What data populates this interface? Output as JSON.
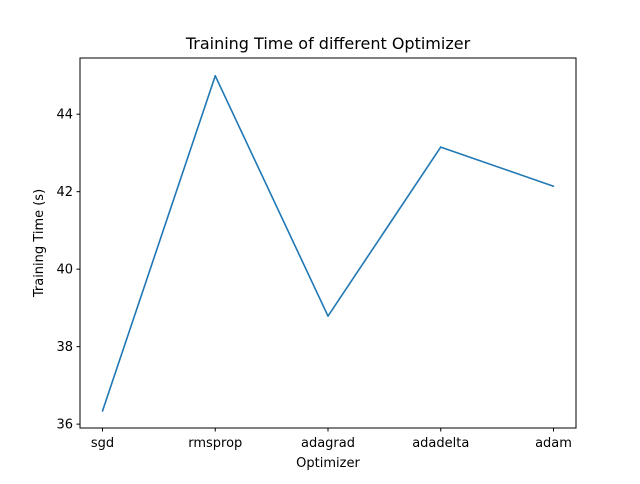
{
  "chart_data": {
    "type": "line",
    "title": "Training Time of different Optimizer",
    "xlabel": "Optimizer",
    "ylabel": "Training Time (s)",
    "categories": [
      "sgd",
      "rmsprop",
      "adagrad",
      "adadelta",
      "adam"
    ],
    "series": [
      {
        "values": [
          36.34,
          44.99,
          38.79,
          43.15,
          42.14
        ],
        "color": "#1f77b4"
      }
    ],
    "ylim": [
      35.9,
      45.45
    ],
    "yticks": [
      36,
      38,
      40,
      42,
      44
    ],
    "grid": false,
    "legend": "none"
  }
}
